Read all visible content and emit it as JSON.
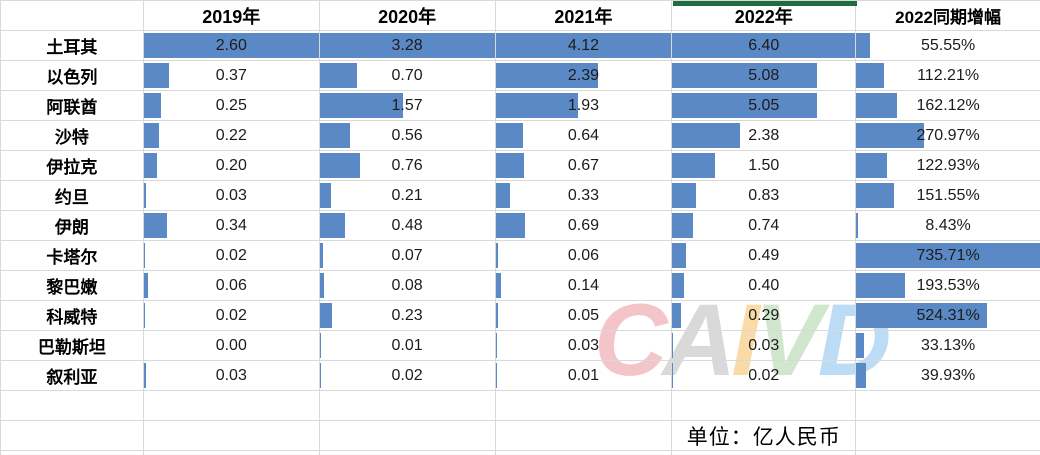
{
  "table": {
    "columns": [
      "",
      "2019年",
      "2020年",
      "2021年",
      "2022年",
      "2022同期增幅"
    ],
    "rows": [
      {
        "country": "土耳其",
        "values": [
          "2.60",
          "3.28",
          "4.12",
          "6.40",
          "55.55%"
        ]
      },
      {
        "country": "以色列",
        "values": [
          "0.37",
          "0.70",
          "2.39",
          "5.08",
          "112.21%"
        ]
      },
      {
        "country": "阿联酋",
        "values": [
          "0.25",
          "1.57",
          "1.93",
          "5.05",
          "162.12%"
        ]
      },
      {
        "country": "沙特",
        "values": [
          "0.22",
          "0.56",
          "0.64",
          "2.38",
          "270.97%"
        ]
      },
      {
        "country": "伊拉克",
        "values": [
          "0.20",
          "0.76",
          "0.67",
          "1.50",
          "122.93%"
        ]
      },
      {
        "country": "约旦",
        "values": [
          "0.03",
          "0.21",
          "0.33",
          "0.83",
          "151.55%"
        ]
      },
      {
        "country": "伊朗",
        "values": [
          "0.34",
          "0.48",
          "0.69",
          "0.74",
          "8.43%"
        ]
      },
      {
        "country": "卡塔尔",
        "values": [
          "0.02",
          "0.07",
          "0.06",
          "0.49",
          "735.71%"
        ]
      },
      {
        "country": "黎巴嫩",
        "values": [
          "0.06",
          "0.08",
          "0.14",
          "0.40",
          "193.53%"
        ]
      },
      {
        "country": "科威特",
        "values": [
          "0.02",
          "0.23",
          "0.05",
          "0.29",
          "524.31%"
        ]
      },
      {
        "country": "巴勒斯坦",
        "values": [
          "0.00",
          "0.01",
          "0.03",
          "0.03",
          "33.13%"
        ]
      },
      {
        "country": "叙利亚",
        "values": [
          "0.03",
          "0.02",
          "0.01",
          "0.02",
          "39.93%"
        ]
      }
    ]
  },
  "unit_note": "单位：亿人民币",
  "watermark": {
    "letters": [
      {
        "char": "C",
        "color": "rgba(221,75,84,0.32)"
      },
      {
        "char": "A",
        "color": "rgba(130,130,130,0.30)"
      },
      {
        "char": "I",
        "color": "rgba(243,165,35,0.40)"
      },
      {
        "char": "V",
        "color": "rgba(110,180,100,0.32)"
      },
      {
        "char": "D",
        "color": "rgba(80,160,230,0.38)"
      }
    ]
  },
  "colors": {
    "data_bar": "#5b89c5",
    "gridline": "#d9d9d9",
    "selection_marker_green": "#1e6c41",
    "value_text": "#1c1c1c"
  }
}
